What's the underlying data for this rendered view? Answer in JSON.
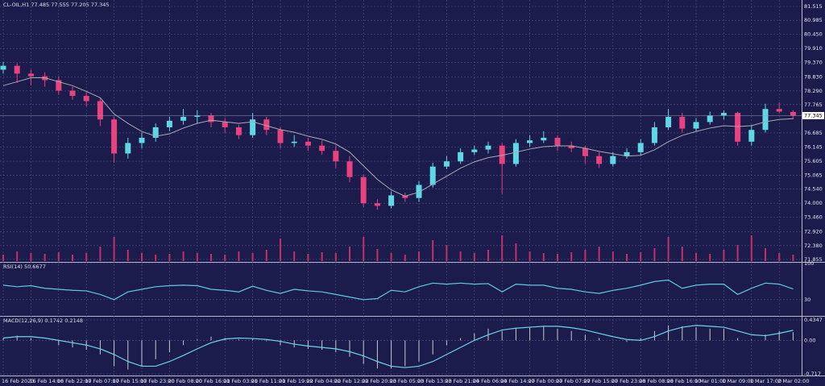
{
  "chart_data": [
    {
      "type": "candlestick",
      "title": "CL-OIL,H1  77.485 77.555 77.205 77.345",
      "categories": [
        "16 Feb 2023",
        null,
        "16 Feb 14:00",
        null,
        "16 Feb 22:00",
        null,
        "17 Feb 07:00",
        null,
        "17 Feb 15:00",
        null,
        "17 Feb 23:00",
        null,
        "20 Feb 08:00",
        null,
        "20 Feb 16:00",
        null,
        "21 Feb 03:00",
        null,
        "21 Feb 11:00",
        null,
        "21 Feb 19:00",
        null,
        "22 Feb 04:00",
        null,
        "22 Feb 12:00",
        null,
        "22 Feb 20:00",
        null,
        "23 Feb 05:00",
        null,
        "23 Feb 13:00",
        null,
        "23 Feb 21:00",
        null,
        "24 Feb 06:00",
        null,
        "24 Feb 14:00",
        null,
        "27 Feb 00:00",
        null,
        "27 Feb 07:00",
        null,
        "27 Feb 15:00",
        null,
        "27 Feb 23:00",
        null,
        "28 Feb 08:00",
        null,
        "28 Feb 16:00",
        null,
        "1 Mar 01:00",
        null,
        "1 Mar 09:00",
        null,
        "1 Mar 17:00",
        null,
        "2 Mar 02:00",
        null
      ],
      "open": [
        79.1,
        79.25,
        78.95,
        78.85,
        78.7,
        78.3,
        78.1,
        77.9,
        77.2,
        75.9,
        76.3,
        76.5,
        76.9,
        77.15,
        77.3,
        77.35,
        77.1,
        76.9,
        76.6,
        77.2,
        76.8,
        76.3,
        76.35,
        76.2,
        76.0,
        75.6,
        75.0,
        74.0,
        73.9,
        74.3,
        74.2,
        74.7,
        75.4,
        75.6,
        75.95,
        76.05,
        76.2,
        75.5,
        76.3,
        76.4,
        76.5,
        76.2,
        76.1,
        75.8,
        75.5,
        75.8,
        75.95,
        76.3,
        76.9,
        77.3,
        76.85,
        77.1,
        77.35,
        77.45,
        76.35,
        76.8,
        77.6,
        77.485
      ],
      "high": [
        79.4,
        79.35,
        79.1,
        79.0,
        78.85,
        78.45,
        78.25,
        78.0,
        77.3,
        76.5,
        76.7,
        77.05,
        77.3,
        77.6,
        77.55,
        77.45,
        77.25,
        77.0,
        77.45,
        77.3,
        76.9,
        76.6,
        76.5,
        76.4,
        76.2,
        75.8,
        75.1,
        74.15,
        74.45,
        74.4,
        74.85,
        75.55,
        75.8,
        76.1,
        76.2,
        76.35,
        76.3,
        76.45,
        76.6,
        76.75,
        76.6,
        76.35,
        76.2,
        75.95,
        75.95,
        76.1,
        76.45,
        77.1,
        77.6,
        77.45,
        77.25,
        77.5,
        77.55,
        77.5,
        77.0,
        77.8,
        77.85,
        77.555
      ],
      "low": [
        78.95,
        78.6,
        78.5,
        78.45,
        78.15,
        77.95,
        77.7,
        76.95,
        75.55,
        75.7,
        76.1,
        76.35,
        76.75,
        77.0,
        77.05,
        76.9,
        76.7,
        76.45,
        76.5,
        76.6,
        76.1,
        76.15,
        76.0,
        75.85,
        75.35,
        74.8,
        73.85,
        73.75,
        73.8,
        74.05,
        74.05,
        74.6,
        75.3,
        75.5,
        75.85,
        75.9,
        74.35,
        75.4,
        76.15,
        76.3,
        76.0,
        75.95,
        75.5,
        75.35,
        75.4,
        75.7,
        75.85,
        76.2,
        76.8,
        76.7,
        76.75,
        77.0,
        77.2,
        76.2,
        76.2,
        76.7,
        77.45,
        77.205
      ],
      "close": [
        79.25,
        78.95,
        78.85,
        78.7,
        78.3,
        78.1,
        77.9,
        77.2,
        75.9,
        76.3,
        76.5,
        76.9,
        77.15,
        77.3,
        77.35,
        77.1,
        76.9,
        76.6,
        77.2,
        76.8,
        76.3,
        76.35,
        76.2,
        76.0,
        75.6,
        75.0,
        74.0,
        73.9,
        74.3,
        74.2,
        74.7,
        75.4,
        75.6,
        75.95,
        76.05,
        76.2,
        75.5,
        76.3,
        76.4,
        76.5,
        76.2,
        76.1,
        75.8,
        75.5,
        75.8,
        75.95,
        76.3,
        76.9,
        77.3,
        76.85,
        77.1,
        77.35,
        77.45,
        76.35,
        76.8,
        77.6,
        77.5,
        77.345
      ],
      "ma": [
        78.49,
        78.64,
        78.79,
        78.79,
        78.64,
        78.49,
        78.27,
        78.03,
        77.41,
        77.05,
        76.74,
        76.56,
        76.65,
        76.87,
        77.05,
        77.17,
        77.11,
        77.05,
        77.11,
        76.96,
        76.81,
        76.71,
        76.56,
        76.44,
        76.26,
        75.95,
        75.43,
        74.91,
        74.51,
        74.27,
        74.42,
        74.73,
        75.03,
        75.34,
        75.58,
        75.74,
        75.83,
        75.95,
        76.07,
        76.16,
        76.19,
        76.19,
        76.1,
        75.98,
        75.89,
        75.8,
        75.83,
        76.04,
        76.35,
        76.59,
        76.74,
        76.87,
        76.96,
        76.93,
        76.96,
        77.11,
        77.2,
        77.23
      ],
      "volume": [
        8,
        12,
        10,
        9,
        11,
        8,
        10,
        18,
        30,
        14,
        10,
        8,
        9,
        12,
        10,
        9,
        8,
        12,
        10,
        14,
        28,
        12,
        9,
        11,
        10,
        18,
        30,
        15,
        10,
        8,
        12,
        26,
        20,
        12,
        10,
        14,
        32,
        22,
        12,
        10,
        9,
        11,
        14,
        18,
        12,
        9,
        11,
        16,
        30,
        18,
        10,
        9,
        14,
        20,
        32,
        16,
        10,
        8
      ],
      "last_price": 77.345,
      "ylim": [
        71.79,
        81.7
      ],
      "yticks": [
        81.515,
        80.985,
        {
          "value": 80.45,
          "label": "80.450"
        },
        {
          "value": 79.91,
          "label": "79.910"
        },
        {
          "value": 79.37,
          "label": "79.370"
        },
        {
          "value": 78.83,
          "label": "78.830"
        },
        {
          "value": 78.29,
          "label": "78.290"
        },
        77.765,
        76.685,
        76.145,
        75.605,
        75.065,
        {
          "value": 74.54,
          "label": "74.540"
        },
        {
          "value": 74,
          "label": "74.000"
        },
        {
          "value": 73.46,
          "label": "73.460"
        },
        {
          "value": 72.92,
          "label": "72.920"
        },
        {
          "value": 72.38,
          "label": "72.380"
        },
        71.855
      ],
      "grid": true,
      "bull_color": "#5fd7e5",
      "bear_color": "#e8427f",
      "ma_color": "#a9a9b4",
      "volume_color": "#c2306a"
    },
    {
      "type": "line",
      "title": "RSI(14) 50.6677",
      "values": [
        58,
        55,
        57,
        52,
        50,
        48,
        47,
        40,
        30,
        45,
        50,
        55,
        57,
        58,
        57,
        50,
        48,
        45,
        56,
        48,
        42,
        50,
        47,
        45,
        40,
        35,
        30,
        32,
        48,
        45,
        55,
        62,
        60,
        62,
        60,
        61,
        45,
        60,
        58,
        58,
        52,
        50,
        45,
        42,
        48,
        52,
        58,
        65,
        68,
        52,
        58,
        60,
        60,
        40,
        52,
        62,
        60,
        50.6677
      ],
      "ylim": [
        0,
        100
      ],
      "yticks": [
        30,
        100
      ],
      "grid": true,
      "color": "#5fc8e0"
    },
    {
      "type": "macd",
      "title": "MACD(12,26,9) 0.1742 0.2148",
      "histogram": [
        0.05,
        0.1,
        0.05,
        0.0,
        -0.1,
        -0.15,
        -0.2,
        -0.3,
        -0.55,
        -0.62,
        -0.55,
        -0.4,
        -0.25,
        -0.1,
        0.02,
        0.08,
        0.05,
        0.02,
        0.03,
        -0.02,
        -0.1,
        -0.15,
        -0.18,
        -0.2,
        -0.25,
        -0.35,
        -0.5,
        -0.6,
        -0.6,
        -0.55,
        -0.45,
        -0.3,
        -0.1,
        0.05,
        0.15,
        0.25,
        0.2,
        0.25,
        0.28,
        0.3,
        0.25,
        0.2,
        0.12,
        0.05,
        0.0,
        -0.03,
        0.05,
        0.2,
        0.32,
        0.3,
        0.28,
        0.25,
        0.25,
        0.05,
        0.02,
        0.12,
        0.2,
        0.1742
      ],
      "signal": [
        0.05,
        0.08,
        0.08,
        0.05,
        0.0,
        -0.05,
        -0.1,
        -0.18,
        -0.3,
        -0.45,
        -0.55,
        -0.55,
        -0.45,
        -0.32,
        -0.18,
        -0.05,
        0.03,
        0.05,
        0.04,
        0.02,
        -0.02,
        -0.08,
        -0.12,
        -0.15,
        -0.18,
        -0.24,
        -0.33,
        -0.45,
        -0.55,
        -0.58,
        -0.55,
        -0.45,
        -0.3,
        -0.15,
        0.0,
        0.12,
        0.22,
        0.26,
        0.28,
        0.3,
        0.3,
        0.27,
        0.22,
        0.15,
        0.08,
        0.02,
        0.0,
        0.08,
        0.2,
        0.28,
        0.32,
        0.3,
        0.28,
        0.2,
        0.12,
        0.1,
        0.15,
        0.2148
      ],
      "ylim": [
        -0.748,
        0.487
      ],
      "yticks": [
        0.4347,
        {
          "value": 0,
          "label": "0.00"
        },
        -0.717
      ],
      "grid": true,
      "histogram_color": "#c8c8d0",
      "signal_color": "#6cd3ec"
    }
  ]
}
